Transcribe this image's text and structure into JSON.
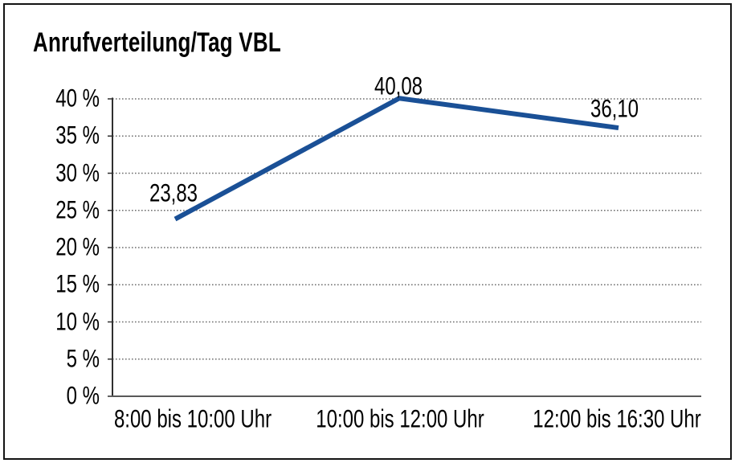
{
  "title": "Anrufverteilung/Tag VBL",
  "chart_data": {
    "type": "line",
    "title": "Anrufverteilung/Tag VBL",
    "categories": [
      "8:00 bis 10:00 Uhr",
      "10:00 bis 12:00 Uhr",
      "12:00 bis 16:30 Uhr"
    ],
    "values": [
      23.83,
      40.08,
      36.1
    ],
    "data_labels": [
      "23,83",
      "40,08",
      "36,10"
    ],
    "xlabel": "",
    "ylabel": "",
    "ylim": [
      0,
      40
    ],
    "ytick_step": 5,
    "ytick_labels": [
      "0 %",
      "5 %",
      "10 %",
      "15 %",
      "20 %",
      "25 %",
      "30 %",
      "35 %",
      "40 %"
    ],
    "grid": true,
    "gridline_style": "dotted",
    "legend_position": "none"
  },
  "colors": {
    "line": "#1A5096",
    "grid": "#6E6E6E",
    "y_axis": "#2F2F2F",
    "x_axis": "#595959",
    "text": "#000000",
    "border": "#141414",
    "background": "#FFFFFF"
  }
}
